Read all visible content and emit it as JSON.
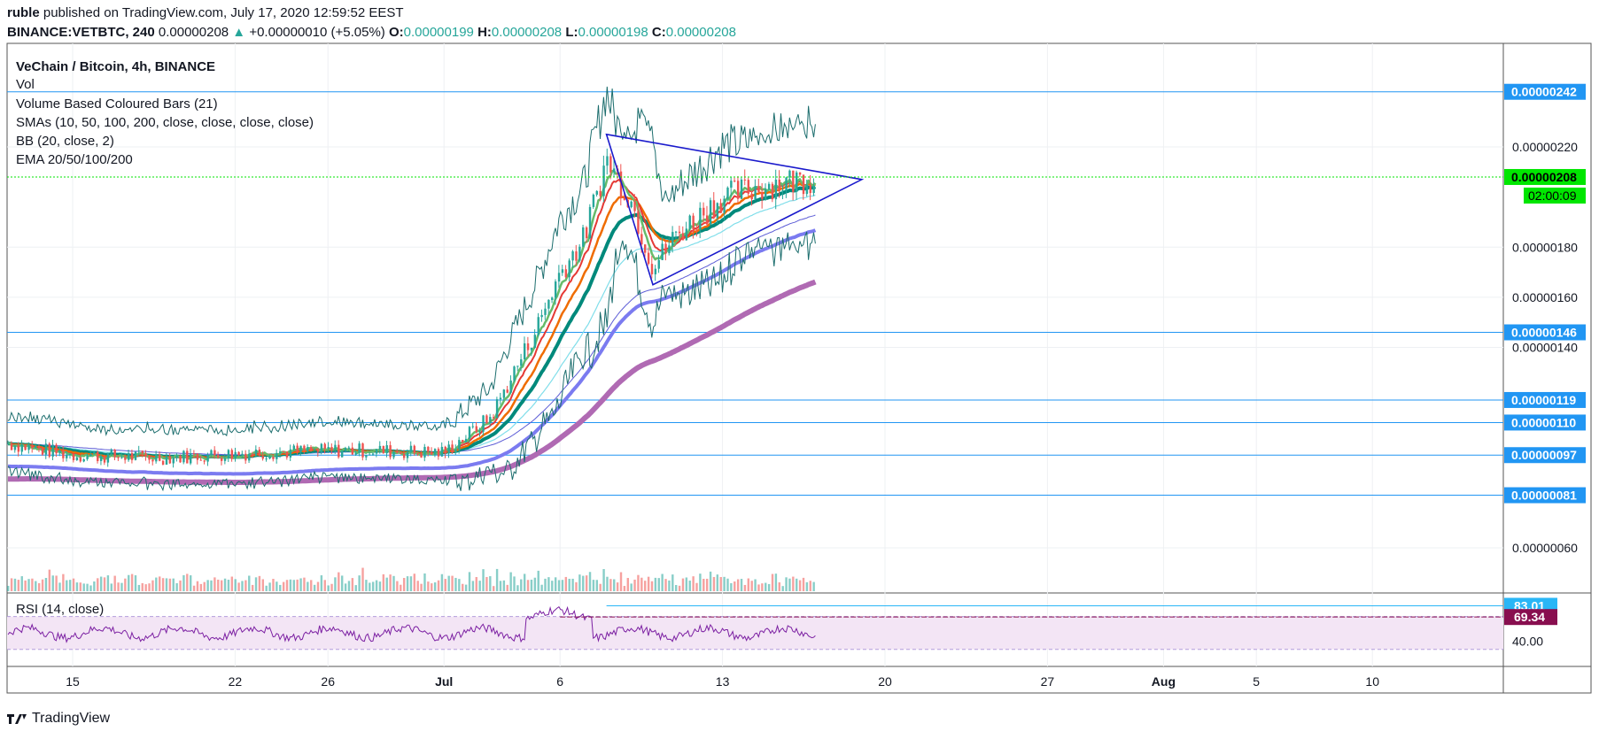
{
  "header": {
    "author": "ruble",
    "published_text": "published on TradingView.com, July 17, 2020 12:59:52 EEST",
    "symbol": "BINANCE:VETBTC, 240",
    "last": "0.00000208",
    "change": "+0.00000010 (+5.05%)",
    "o_label": "O:",
    "o_value": "0.00000199",
    "h_label": "H:",
    "h_value": "0.00000208",
    "l_label": "L:",
    "l_value": "0.00000198",
    "c_label": "C:",
    "c_value": "0.00000208"
  },
  "legend": {
    "title": "VeChain / Bitcoin, 4h, BINANCE",
    "vol": "Vol",
    "vbcb": "Volume Based Coloured Bars (21)",
    "smas": "SMAs (10, 50, 100, 200, close, close, close, close)",
    "bb": "BB (20, close, 2)",
    "ema": "EMA 20/50/100/200"
  },
  "rsi_legend": "RSI (14, close)",
  "footer": {
    "brand": "TradingView"
  },
  "colors": {
    "up": "#26a69a",
    "down": "#ef5350",
    "hline": "#2196f3",
    "price_tag": "#00e600",
    "rsi_line": "#7b1fa2",
    "rsi_band": "#f3e5f5",
    "ema20": "#ef6c00",
    "ema50": "#00897b",
    "ema100": "#7b7bf0",
    "ema200": "#b06ab3",
    "sma_red": "#e53935",
    "sma_green": "#66bb6a",
    "cyan": "#80deea",
    "bb": "#1b6d6d",
    "triangle": "#1a1acc"
  },
  "chart_data": {
    "type": "candlestick",
    "title": "VeChain / Bitcoin, 4h, BINANCE",
    "price_axis": {
      "ylim": [
        5e-07,
        2.5e-06
      ],
      "ticks": [
        "0.00000220",
        "0.00000180",
        "0.00000160",
        "0.00000140",
        "0.00000060"
      ],
      "tick_values": [
        2.2e-06,
        1.8e-06,
        1.6e-06,
        1.4e-06,
        6e-07
      ]
    },
    "x_axis": {
      "ticks": [
        "15",
        "22",
        "26",
        "Jul",
        "6",
        "13",
        "20",
        "27",
        "Aug",
        "5",
        "10"
      ],
      "dates": [
        "2020-06-15",
        "2020-06-22",
        "2020-06-26",
        "2020-07-01",
        "2020-07-06",
        "2020-07-13",
        "2020-07-20",
        "2020-07-27",
        "2020-08-01",
        "2020-08-05",
        "2020-08-10"
      ]
    },
    "horizontal_levels": [
      {
        "value": 2.42e-06,
        "label": "0.00000242"
      },
      {
        "value": 1.46e-06,
        "label": "0.00000146"
      },
      {
        "value": 1.19e-06,
        "label": "0.00000119"
      },
      {
        "value": 1.1e-06,
        "label": "0.00000110"
      },
      {
        "value": 9.7e-07,
        "label": "0.00000097"
      },
      {
        "value": 8.1e-07,
        "label": "0.00000081"
      }
    ],
    "last_price": {
      "value": 2.08e-06,
      "label": "0.00000208",
      "countdown": "02:00:09"
    },
    "close_path": [
      {
        "date": "2020-06-12",
        "close": 1.02e-06
      },
      {
        "date": "2020-06-15",
        "close": 9.7e-07
      },
      {
        "date": "2020-06-19",
        "close": 9.6e-07
      },
      {
        "date": "2020-06-23",
        "close": 9.8e-07
      },
      {
        "date": "2020-06-27",
        "close": 9.9e-07
      },
      {
        "date": "2020-07-01",
        "close": 9.8e-07
      },
      {
        "date": "2020-07-03",
        "close": 1.12e-06
      },
      {
        "date": "2020-07-05",
        "close": 1.48e-06
      },
      {
        "date": "2020-07-06",
        "close": 1.7e-06
      },
      {
        "date": "2020-07-07",
        "close": 1.83e-06
      },
      {
        "date": "2020-07-08",
        "close": 2.15e-06
      },
      {
        "date": "2020-07-09",
        "close": 2e-06
      },
      {
        "date": "2020-07-10",
        "close": 1.72e-06
      },
      {
        "date": "2020-07-11",
        "close": 1.85e-06
      },
      {
        "date": "2020-07-13",
        "close": 2e-06
      },
      {
        "date": "2020-07-15",
        "close": 2.05e-06
      },
      {
        "date": "2020-07-17",
        "close": 2.08e-06
      }
    ],
    "rsi": {
      "name": "RSI (14, close)",
      "ticks": [
        "40.00"
      ],
      "tag_values": [
        "83.01",
        "69.34"
      ],
      "band": [
        30,
        70
      ]
    },
    "triangle": {
      "apex_date": "2020-07-19"
    }
  }
}
